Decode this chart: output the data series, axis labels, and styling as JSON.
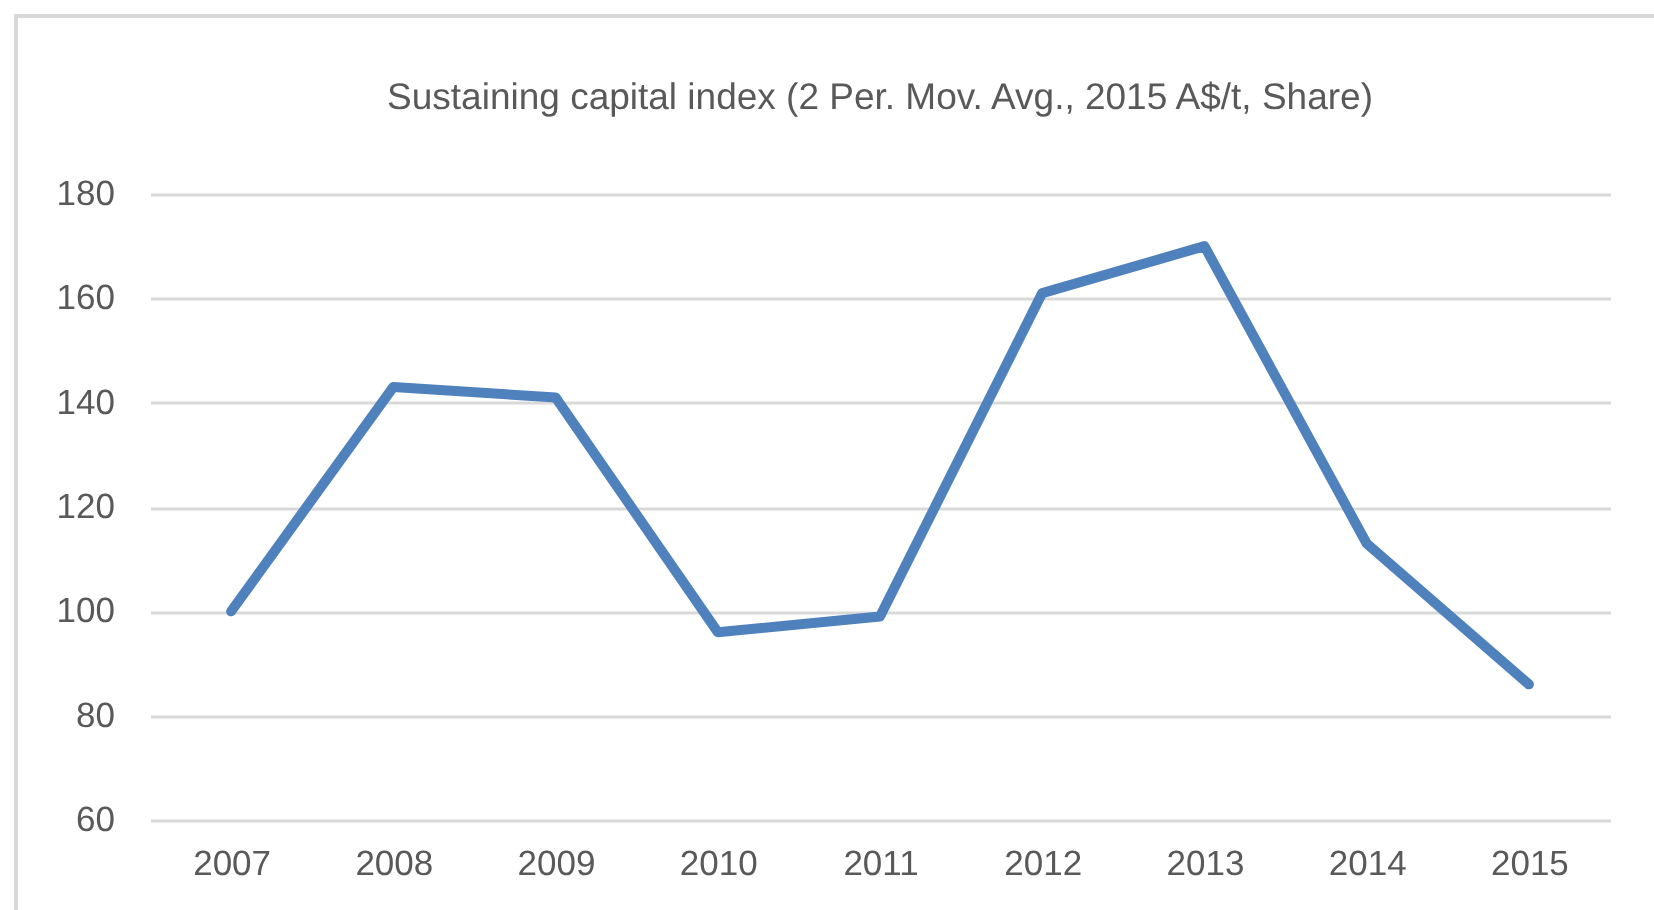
{
  "chart_data": {
    "type": "line",
    "title": "Sustaining capital index  (2 Per. Mov. Avg., 2015 A$/t, Share)",
    "categories": [
      "2007",
      "2008",
      "2009",
      "2010",
      "2011",
      "2012",
      "2013",
      "2014",
      "2015"
    ],
    "series": [
      {
        "color": "#4f81bd",
        "values": [
          100,
          143,
          141,
          96,
          99,
          161,
          170,
          113,
          86
        ]
      }
    ],
    "ylim": [
      60,
      180
    ],
    "yticks": [
      60,
      80,
      100,
      120,
      140,
      160,
      180
    ],
    "grid": "y",
    "line_style": "solid"
  }
}
